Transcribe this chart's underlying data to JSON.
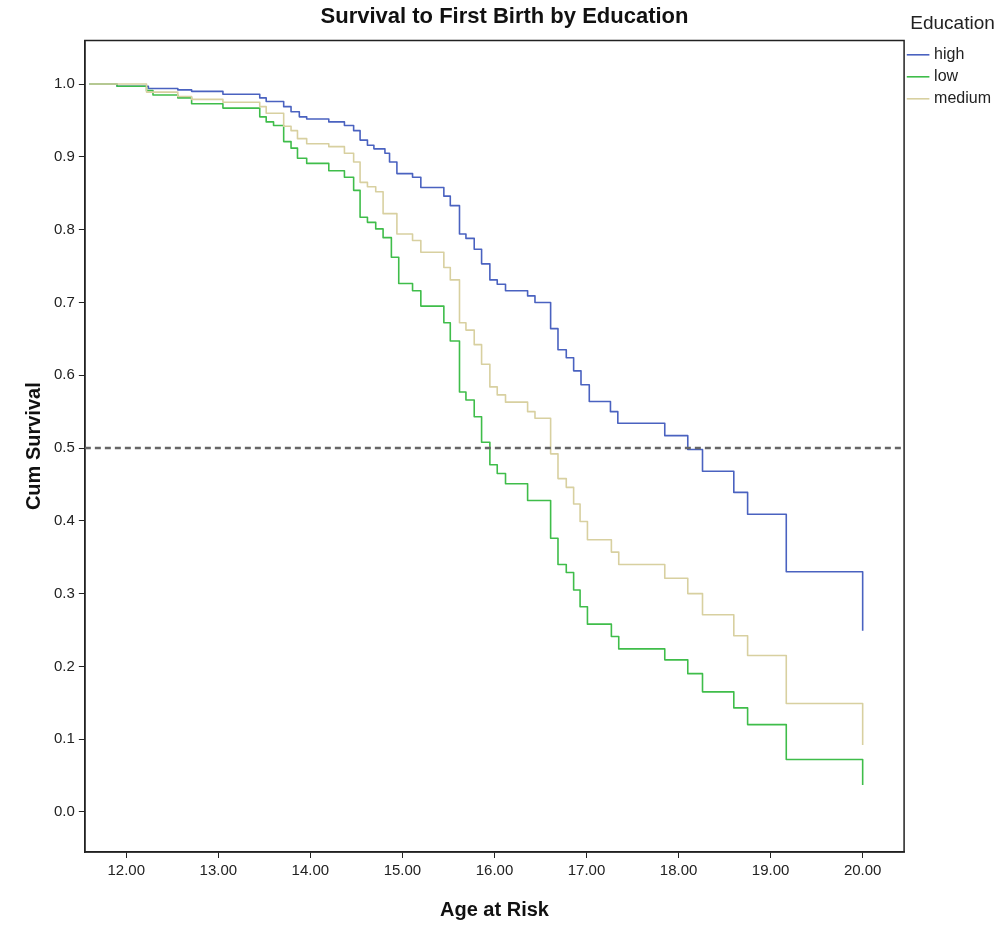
{
  "chart_data": {
    "type": "step",
    "title": "Survival to First Birth by Education",
    "xlabel": "Age at Risk",
    "ylabel": "Cum Survival",
    "legend_title": "Education",
    "legend": "top right",
    "grid": false,
    "xlim": [
      11.55,
      20.45
    ],
    "ylim": [
      -0.055,
      1.06
    ],
    "xticks": [
      {
        "value": 12,
        "label": "12.00"
      },
      {
        "value": 13,
        "label": "13.00"
      },
      {
        "value": 14,
        "label": "14.00"
      },
      {
        "value": 15,
        "label": "15.00"
      },
      {
        "value": 16,
        "label": "16.00"
      },
      {
        "value": 17,
        "label": "17.00"
      },
      {
        "value": 18,
        "label": "18.00"
      },
      {
        "value": 19,
        "label": "19.00"
      },
      {
        "value": 20,
        "label": "20.00"
      }
    ],
    "yticks": [
      {
        "value": 0,
        "label": "0.0"
      },
      {
        "value": 0.1,
        "label": "0.1"
      },
      {
        "value": 0.2,
        "label": "0.2"
      },
      {
        "value": 0.3,
        "label": "0.3"
      },
      {
        "value": 0.4,
        "label": "0.4"
      },
      {
        "value": 0.5,
        "label": "0.5"
      },
      {
        "value": 0.6,
        "label": "0.6"
      },
      {
        "value": 0.7,
        "label": "0.7"
      },
      {
        "value": 0.8,
        "label": "0.8"
      },
      {
        "value": 0.9,
        "label": "0.9"
      },
      {
        "value": 1.0,
        "label": "1.0"
      }
    ],
    "ref_lines": [
      {
        "axis": "y",
        "value": 0.5,
        "color": "#666666",
        "line_style": "dashed"
      }
    ],
    "series": [
      {
        "name": "high",
        "color": "#4a62c0",
        "x": [
          11.6,
          11.9,
          12.24,
          12.56,
          12.71,
          13.05,
          13.45,
          13.52,
          13.71,
          13.79,
          13.88,
          13.96,
          14.2,
          14.37,
          14.47,
          14.54,
          14.62,
          14.69,
          14.81,
          14.86,
          14.94,
          15.11,
          15.2,
          15.45,
          15.52,
          15.62,
          15.69,
          15.78,
          15.86,
          15.95,
          16.03,
          16.12,
          16.36,
          16.44,
          16.61,
          16.69,
          16.78,
          16.86,
          16.94,
          17.03,
          17.26,
          17.34,
          17.85,
          18.1,
          18.26,
          18.6,
          18.75,
          19.17,
          20.0
        ],
        "values": [
          1.0,
          0.997,
          0.994,
          0.992,
          0.99,
          0.986,
          0.981,
          0.976,
          0.969,
          0.962,
          0.955,
          0.952,
          0.948,
          0.943,
          0.936,
          0.923,
          0.916,
          0.911,
          0.905,
          0.893,
          0.877,
          0.872,
          0.858,
          0.846,
          0.833,
          0.794,
          0.788,
          0.773,
          0.753,
          0.731,
          0.725,
          0.716,
          0.709,
          0.7,
          0.664,
          0.635,
          0.624,
          0.606,
          0.587,
          0.564,
          0.55,
          0.534,
          0.517,
          0.498,
          0.468,
          0.439,
          0.409,
          0.33,
          0.249
        ]
      },
      {
        "name": "low",
        "color": "#3fbd4a",
        "x": [
          11.6,
          11.9,
          12.22,
          12.29,
          12.56,
          12.71,
          13.05,
          13.45,
          13.52,
          13.6,
          13.71,
          13.79,
          13.86,
          13.96,
          14.2,
          14.37,
          14.47,
          14.54,
          14.62,
          14.71,
          14.79,
          14.88,
          14.96,
          15.11,
          15.2,
          15.45,
          15.52,
          15.62,
          15.69,
          15.78,
          15.86,
          15.95,
          16.03,
          16.12,
          16.36,
          16.61,
          16.69,
          16.78,
          16.86,
          16.93,
          17.01,
          17.27,
          17.35,
          17.85,
          18.1,
          18.26,
          18.6,
          18.75,
          19.17,
          20.0
        ],
        "values": [
          1.0,
          0.997,
          0.991,
          0.985,
          0.981,
          0.973,
          0.967,
          0.955,
          0.948,
          0.943,
          0.921,
          0.912,
          0.898,
          0.891,
          0.881,
          0.872,
          0.854,
          0.817,
          0.81,
          0.801,
          0.789,
          0.762,
          0.726,
          0.716,
          0.695,
          0.672,
          0.647,
          0.577,
          0.566,
          0.543,
          0.508,
          0.477,
          0.465,
          0.451,
          0.428,
          0.376,
          0.34,
          0.329,
          0.305,
          0.282,
          0.258,
          0.241,
          0.224,
          0.209,
          0.19,
          0.165,
          0.143,
          0.12,
          0.072,
          0.037
        ]
      },
      {
        "name": "medium",
        "color": "#d8d0a0",
        "x": [
          11.6,
          12.22,
          12.56,
          12.71,
          13.05,
          13.45,
          13.52,
          13.71,
          13.79,
          13.86,
          13.96,
          14.2,
          14.37,
          14.47,
          14.54,
          14.62,
          14.71,
          14.79,
          14.94,
          15.11,
          15.2,
          15.45,
          15.52,
          15.62,
          15.69,
          15.78,
          15.86,
          15.95,
          16.03,
          16.12,
          16.36,
          16.44,
          16.61,
          16.69,
          16.78,
          16.86,
          16.93,
          17.01,
          17.27,
          17.35,
          17.85,
          18.1,
          18.26,
          18.6,
          18.75,
          19.17,
          20.0
        ],
        "values": [
          1.0,
          0.989,
          0.983,
          0.979,
          0.975,
          0.969,
          0.96,
          0.942,
          0.936,
          0.925,
          0.918,
          0.914,
          0.905,
          0.893,
          0.865,
          0.859,
          0.852,
          0.822,
          0.794,
          0.785,
          0.769,
          0.748,
          0.731,
          0.672,
          0.662,
          0.642,
          0.615,
          0.584,
          0.573,
          0.563,
          0.55,
          0.541,
          0.492,
          0.458,
          0.446,
          0.423,
          0.399,
          0.374,
          0.357,
          0.34,
          0.321,
          0.3,
          0.271,
          0.242,
          0.215,
          0.149,
          0.092
        ]
      }
    ]
  }
}
